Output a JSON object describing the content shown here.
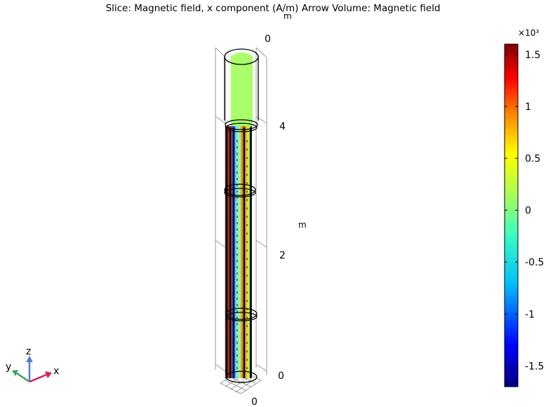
{
  "title": "Slice: Magnetic field, x component (A/m)  Arrow Volume: Magnetic field",
  "axis": {
    "unit": "m",
    "z_ticks": [
      "0",
      "2",
      "4"
    ],
    "top_label": "0",
    "bottom_label": "0"
  },
  "triad": {
    "x": "x",
    "y": "y",
    "z": "z"
  },
  "colors": {
    "slice_field": "#a8ff6a",
    "conductor_hot": "#e33000",
    "conductor_cold": "#1a6cff"
  },
  "chart_data": {
    "type": "heatmap",
    "title": "Slice: Magnetic field, x component (A/m)  Arrow Volume: Magnetic field",
    "z_axis": {
      "label": "m",
      "range": [
        0,
        4.8
      ],
      "ticks": [
        0,
        2,
        4
      ]
    },
    "colorbar": {
      "colormap": "rainbow",
      "multiplier": "×10³",
      "range": [
        -1.7,
        1.6
      ],
      "ticks": [
        1.5,
        1,
        0.5,
        0,
        -0.5,
        -1,
        -1.5
      ],
      "tick_labels": [
        "1.5",
        "1",
        "0.5",
        "0",
        "-0.5",
        "-1",
        "-1.5"
      ]
    }
  }
}
